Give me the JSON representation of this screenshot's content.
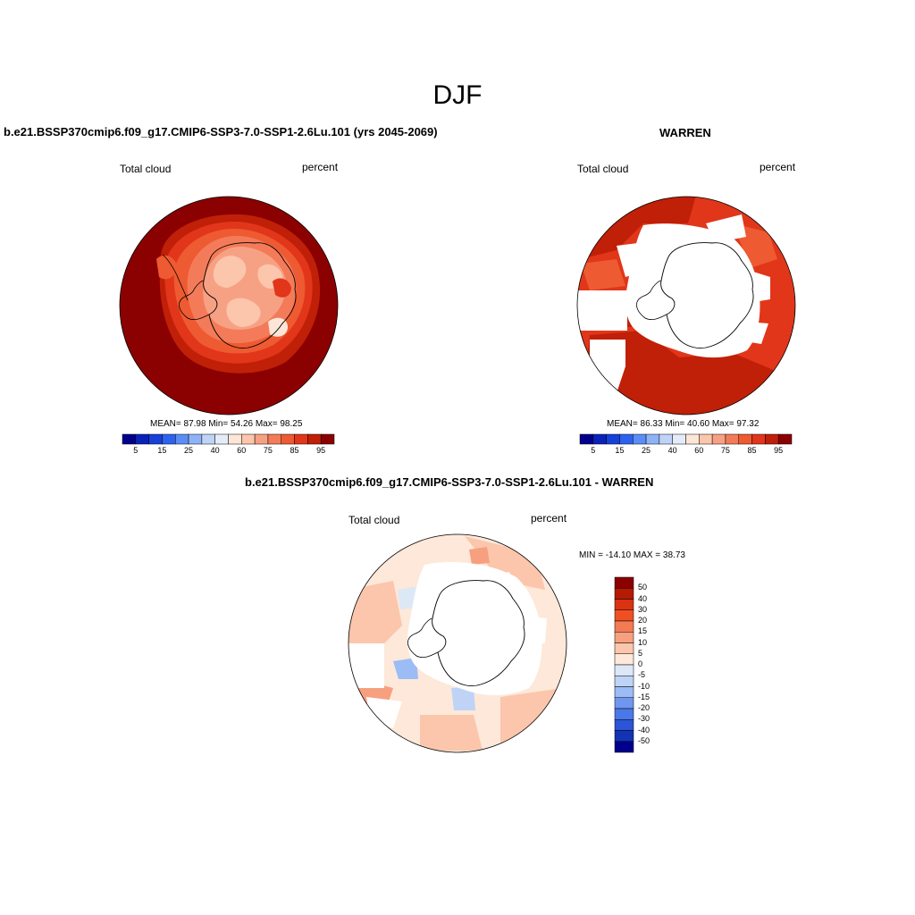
{
  "title": "DJF",
  "panels": [
    {
      "id": "model",
      "title": "b.e21.BSSP370cmip6.f09_g17.CMIP6-SSP3-7.0-SSP1-2.6Lu.101 (yrs 2045-2069)",
      "left_label": "Total cloud",
      "right_label": "percent",
      "stats": "MEAN=  87.98  Min=  54.26  Max=  98.25",
      "colorbar_ticks": [
        "5",
        "15",
        "25",
        "40",
        "60",
        "75",
        "85",
        "95"
      ]
    },
    {
      "id": "obs",
      "title": "WARREN",
      "left_label": "Total cloud",
      "right_label": "percent",
      "stats": "MEAN=  86.33  Min=  40.60  Max=  97.32",
      "colorbar_ticks": [
        "5",
        "15",
        "25",
        "40",
        "60",
        "75",
        "85",
        "95"
      ]
    },
    {
      "id": "diff",
      "title": "b.e21.BSSP370cmip6.f09_g17.CMIP6-SSP3-7.0-SSP1-2.6Lu.101 - WARREN",
      "left_label": "Total cloud",
      "right_label": "percent",
      "stats": "MIN = -14.10 MAX =  38.73",
      "colorbar_ticks": [
        "50",
        "40",
        "30",
        "20",
        "15",
        "10",
        "5",
        "0",
        "-5",
        "-10",
        "-15",
        "-20",
        "-30",
        "-40",
        "-50"
      ]
    }
  ],
  "colors": {
    "abs_scale": [
      "#00008b",
      "#0a22b8",
      "#1640d8",
      "#2d62ee",
      "#5a8ef5",
      "#8fb2f7",
      "#bfd3f7",
      "#e3ecf8",
      "#fde6d8",
      "#fbc6ac",
      "#f7a184",
      "#f47b59",
      "#ee5a31",
      "#e1361a",
      "#c01f08",
      "#8b0000"
    ],
    "diff_scale": [
      "#8b0000",
      "#b61a05",
      "#d93312",
      "#ee5023",
      "#f47a52",
      "#f7a07f",
      "#fbc6ac",
      "#fde8d9",
      "#dde8f7",
      "#bfd3f7",
      "#9bbcf5",
      "#7097ef",
      "#4b78e8",
      "#2b55d4",
      "#1233b6",
      "#00008b"
    ]
  }
}
